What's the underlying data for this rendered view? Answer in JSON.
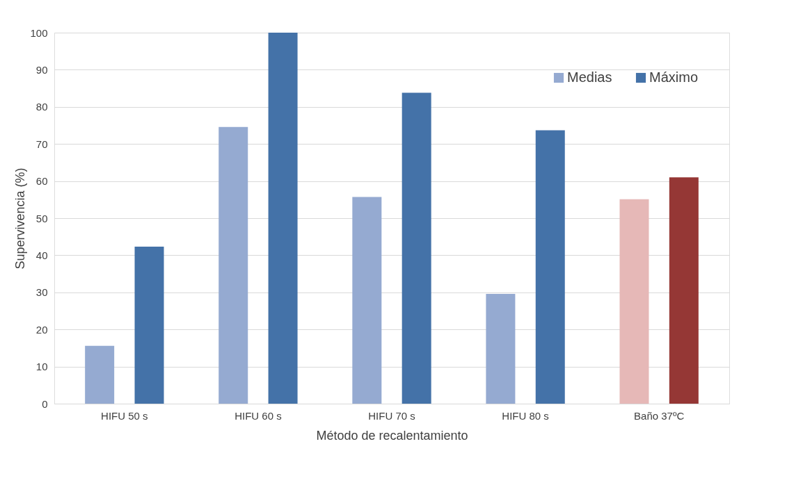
{
  "chart_data": {
    "type": "bar",
    "xlabel": "Método de recalentamiento",
    "ylabel": "Supervivencia (%)",
    "categories": [
      "HIFU 50 s",
      "HIFU 60 s",
      "HIFU 70 s",
      "HIFU 80 s",
      "Baño 37ºC"
    ],
    "series": [
      {
        "name": "Medias",
        "color": "#95aad1",
        "colors": [
          "#95aad1",
          "#95aad1",
          "#95aad1",
          "#95aad1",
          "#e6b8b7"
        ],
        "values": [
          15.6,
          74.6,
          55.7,
          29.6,
          55.1
        ]
      },
      {
        "name": "Máximo",
        "color": "#4472a8",
        "colors": [
          "#4472a8",
          "#4472a8",
          "#4472a8",
          "#4472a8",
          "#953735"
        ],
        "values": [
          42.3,
          100,
          83.8,
          73.7,
          61.0
        ]
      }
    ],
    "ylim": [
      0,
      100
    ],
    "yticks": [
      0,
      10,
      20,
      30,
      40,
      50,
      60,
      70,
      80,
      90,
      100
    ],
    "grid": "y",
    "legend": "top right"
  }
}
